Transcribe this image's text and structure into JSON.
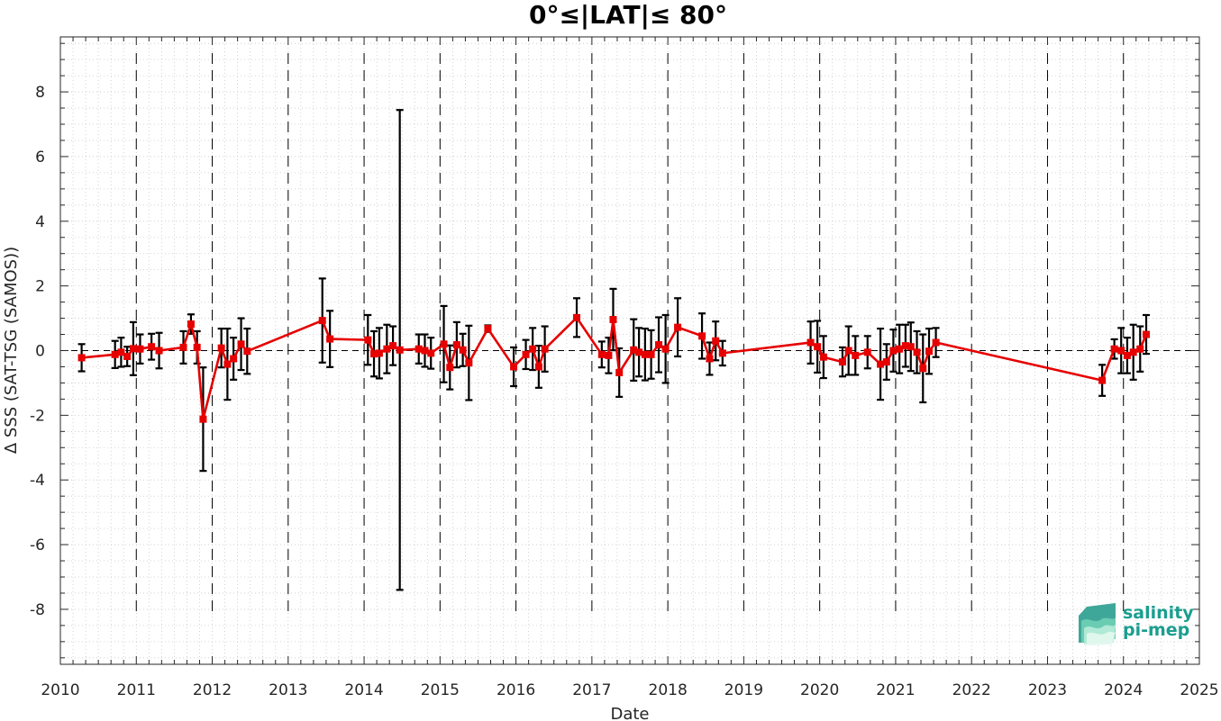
{
  "chart_data": {
    "type": "line",
    "title": "0°≤|LAT|≤ 80°",
    "xlabel": "Date",
    "ylabel": "Δ SSS (SAT-TSG (SAMOS))",
    "xlim": [
      2010,
      2025
    ],
    "ylim": [
      -9.7,
      9.7
    ],
    "xticks": [
      2010,
      2011,
      2012,
      2013,
      2014,
      2015,
      2016,
      2017,
      2018,
      2019,
      2020,
      2021,
      2022,
      2023,
      2024,
      2025
    ],
    "yticks": [
      -8,
      -6,
      -4,
      -2,
      0,
      2,
      4,
      6,
      8
    ],
    "grid": "minor dotted",
    "year_boundaries": "dashed vertical lines",
    "zero_line": "dashed horizontal line",
    "series": [
      {
        "color": "#e60000",
        "errorbar_color": "#000000",
        "marker": "square",
        "points": [
          {
            "x": 2010.28,
            "y": -0.22,
            "err": 0.42
          },
          {
            "x": 2010.72,
            "y": -0.12,
            "err": 0.42
          },
          {
            "x": 2010.8,
            "y": -0.05,
            "err": 0.45
          },
          {
            "x": 2010.88,
            "y": -0.18,
            "err": 0.3
          },
          {
            "x": 2010.96,
            "y": 0.06,
            "err": 0.82
          },
          {
            "x": 2011.05,
            "y": 0.05,
            "err": 0.45
          },
          {
            "x": 2011.2,
            "y": 0.12,
            "err": 0.4
          },
          {
            "x": 2011.3,
            "y": 0.0,
            "err": 0.55
          },
          {
            "x": 2011.62,
            "y": 0.1,
            "err": 0.5
          },
          {
            "x": 2011.72,
            "y": 0.82,
            "err": 0.3
          },
          {
            "x": 2011.8,
            "y": 0.1,
            "err": 0.5
          },
          {
            "x": 2011.88,
            "y": -2.12,
            "err": 1.6
          },
          {
            "x": 2012.12,
            "y": 0.08,
            "err": 0.6
          },
          {
            "x": 2012.2,
            "y": -0.42,
            "err": 1.1
          },
          {
            "x": 2012.28,
            "y": -0.25,
            "err": 0.65
          },
          {
            "x": 2012.38,
            "y": 0.2,
            "err": 0.8
          },
          {
            "x": 2012.46,
            "y": -0.02,
            "err": 0.7
          },
          {
            "x": 2013.45,
            "y": 0.93,
            "err": 1.3
          },
          {
            "x": 2013.55,
            "y": 0.36,
            "err": 0.87
          },
          {
            "x": 2014.05,
            "y": 0.33,
            "err": 0.77
          },
          {
            "x": 2014.13,
            "y": -0.1,
            "err": 0.7
          },
          {
            "x": 2014.2,
            "y": -0.08,
            "err": 0.78
          },
          {
            "x": 2014.3,
            "y": 0.05,
            "err": 0.75
          },
          {
            "x": 2014.38,
            "y": 0.15,
            "err": 0.6
          },
          {
            "x": 2014.47,
            "y": 0.02,
            "err": 7.42
          },
          {
            "x": 2014.72,
            "y": 0.05,
            "err": 0.45
          },
          {
            "x": 2014.8,
            "y": 0.0,
            "err": 0.5
          },
          {
            "x": 2014.88,
            "y": -0.08,
            "err": 0.48
          },
          {
            "x": 2015.05,
            "y": 0.2,
            "err": 1.18
          },
          {
            "x": 2015.13,
            "y": -0.52,
            "err": 0.68
          },
          {
            "x": 2015.22,
            "y": 0.18,
            "err": 0.7
          },
          {
            "x": 2015.3,
            "y": 0.02,
            "err": 0.5
          },
          {
            "x": 2015.38,
            "y": -0.38,
            "err": 1.15
          },
          {
            "x": 2015.63,
            "y": 0.68,
            "err": 0.1
          },
          {
            "x": 2015.97,
            "y": -0.5,
            "err": 0.6
          },
          {
            "x": 2016.13,
            "y": -0.12,
            "err": 0.45
          },
          {
            "x": 2016.22,
            "y": 0.05,
            "err": 0.65
          },
          {
            "x": 2016.3,
            "y": -0.5,
            "err": 0.65
          },
          {
            "x": 2016.38,
            "y": 0.05,
            "err": 0.7
          },
          {
            "x": 2016.8,
            "y": 1.02,
            "err": 0.6
          },
          {
            "x": 2017.13,
            "y": -0.12,
            "err": 0.4
          },
          {
            "x": 2017.22,
            "y": -0.15,
            "err": 0.55
          },
          {
            "x": 2017.28,
            "y": 0.96,
            "err": 0.95
          },
          {
            "x": 2017.36,
            "y": -0.68,
            "err": 0.75
          },
          {
            "x": 2017.55,
            "y": 0.02,
            "err": 0.95
          },
          {
            "x": 2017.62,
            "y": -0.05,
            "err": 0.75
          },
          {
            "x": 2017.7,
            "y": -0.12,
            "err": 0.8
          },
          {
            "x": 2017.78,
            "y": -0.12,
            "err": 0.75
          },
          {
            "x": 2017.88,
            "y": 0.18,
            "err": 0.85
          },
          {
            "x": 2017.97,
            "y": 0.05,
            "err": 1.05
          },
          {
            "x": 2018.13,
            "y": 0.72,
            "err": 0.9
          },
          {
            "x": 2018.45,
            "y": 0.45,
            "err": 0.7
          },
          {
            "x": 2018.55,
            "y": -0.25,
            "err": 0.5
          },
          {
            "x": 2018.63,
            "y": 0.3,
            "err": 0.6
          },
          {
            "x": 2018.72,
            "y": -0.08,
            "err": 0.38
          },
          {
            "x": 2019.88,
            "y": 0.25,
            "err": 0.65
          },
          {
            "x": 2019.97,
            "y": 0.12,
            "err": 0.8
          },
          {
            "x": 2020.05,
            "y": -0.2,
            "err": 0.65
          },
          {
            "x": 2020.3,
            "y": -0.35,
            "err": 0.45
          },
          {
            "x": 2020.38,
            "y": 0.0,
            "err": 0.75
          },
          {
            "x": 2020.47,
            "y": -0.15,
            "err": 0.6
          },
          {
            "x": 2020.63,
            "y": -0.05,
            "err": 0.5
          },
          {
            "x": 2020.8,
            "y": -0.42,
            "err": 1.1
          },
          {
            "x": 2020.88,
            "y": -0.35,
            "err": 0.55
          },
          {
            "x": 2020.97,
            "y": 0.0,
            "err": 0.65
          },
          {
            "x": 2021.05,
            "y": 0.05,
            "err": 0.75
          },
          {
            "x": 2021.13,
            "y": 0.15,
            "err": 0.65
          },
          {
            "x": 2021.2,
            "y": 0.12,
            "err": 0.75
          },
          {
            "x": 2021.28,
            "y": -0.05,
            "err": 0.65
          },
          {
            "x": 2021.36,
            "y": -0.55,
            "err": 1.05
          },
          {
            "x": 2021.44,
            "y": -0.02,
            "err": 0.7
          },
          {
            "x": 2021.53,
            "y": 0.25,
            "err": 0.45
          },
          {
            "x": 2023.72,
            "y": -0.92,
            "err": 0.48
          },
          {
            "x": 2023.88,
            "y": 0.05,
            "err": 0.3
          },
          {
            "x": 2023.97,
            "y": 0.0,
            "err": 0.7
          },
          {
            "x": 2024.05,
            "y": -0.15,
            "err": 0.55
          },
          {
            "x": 2024.13,
            "y": -0.05,
            "err": 0.85
          },
          {
            "x": 2024.22,
            "y": 0.05,
            "err": 0.7
          },
          {
            "x": 2024.3,
            "y": 0.5,
            "err": 0.6
          }
        ]
      }
    ]
  },
  "logo": {
    "line1": "salinity",
    "line2": "pi-mep",
    "color": "#1a9e8f"
  }
}
